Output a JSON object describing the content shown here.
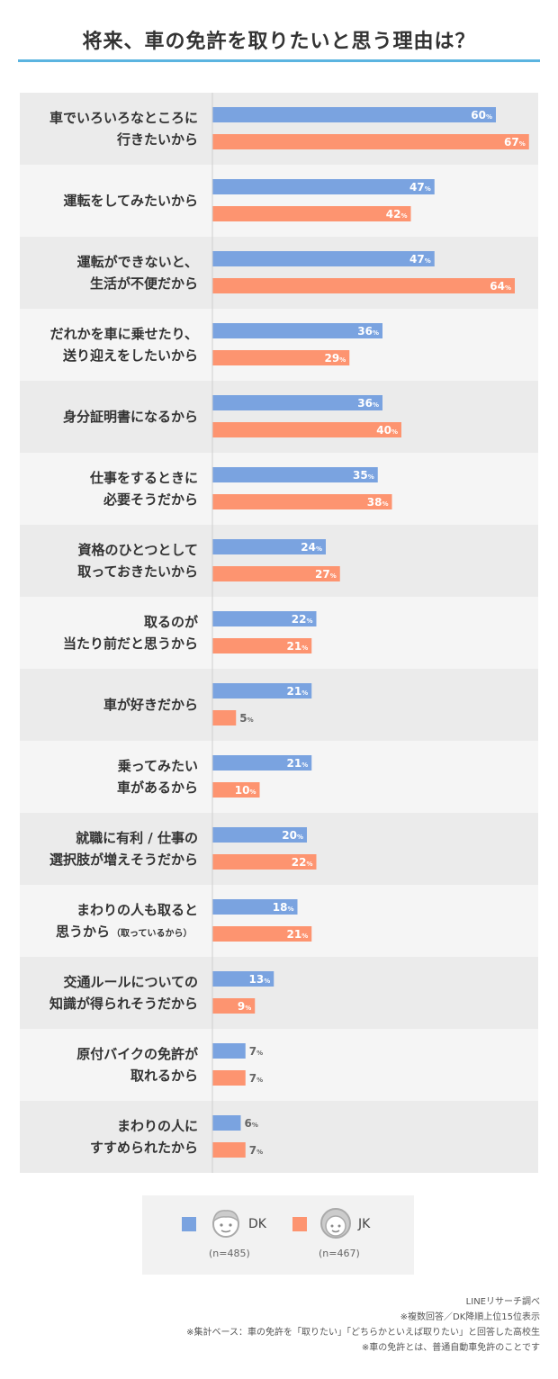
{
  "chart_data": {
    "type": "bar",
    "orientation": "horizontal",
    "title": "将来、車の免許を取りたいと思う理由は？",
    "categories": [
      [
        "車でいろいろなところに",
        "行きたいから"
      ],
      [
        "運転をしてみたいから"
      ],
      [
        "運転ができないと、",
        "生活が不便だから"
      ],
      [
        "だれかを車に乗せたり、",
        "送り迎えをしたいから"
      ],
      [
        "身分証明書になるから"
      ],
      [
        "仕事をするときに",
        "必要そうだから"
      ],
      [
        "資格のひとつとして",
        "取っておきたいから"
      ],
      [
        "取るのが",
        "当たり前だと思うから"
      ],
      [
        "車が好きだから"
      ],
      [
        "乗ってみたい",
        "車があるから"
      ],
      [
        "就職に有利 / 仕事の",
        "選択肢が増えそうだから"
      ],
      [
        "まわりの人も取ると",
        "思うから",
        "（取っているから）"
      ],
      [
        "交通ルールについての",
        "知識が得られそうだから"
      ],
      [
        "原付バイクの免許が",
        "取れるから"
      ],
      [
        "まわりの人に",
        "すすめられたから"
      ]
    ],
    "series": [
      {
        "name": "DK",
        "color": "#7aa3e0",
        "values": [
          60,
          47,
          47,
          36,
          36,
          35,
          24,
          22,
          21,
          21,
          20,
          18,
          13,
          7,
          6
        ]
      },
      {
        "name": "JK",
        "color": "#fd9470",
        "values": [
          67,
          42,
          64,
          29,
          40,
          38,
          27,
          21,
          5,
          10,
          22,
          21,
          9,
          7,
          7
        ]
      }
    ],
    "unit": "%",
    "xlim": [
      0,
      100
    ],
    "row_colors": [
      "#ebebeb",
      "#f5f5f5"
    ]
  },
  "legend": {
    "items": [
      {
        "label": "DK",
        "n": "(n=485)",
        "icon": "boy-face-icon",
        "color": "#7aa3e0"
      },
      {
        "label": "JK",
        "n": "(n=467)",
        "icon": "girl-face-icon",
        "color": "#fd9470"
      }
    ]
  },
  "notes": [
    "LINEリサーチ調べ",
    "※複数回答／DK降順上位15位表示",
    "※集計ベース：車の免許を「取りたい」「どちらかといえば取りたい」と回答した高校生",
    "※車の免許とは、普通自動車免許のことです"
  ],
  "accent_color": "#5bb4e0"
}
